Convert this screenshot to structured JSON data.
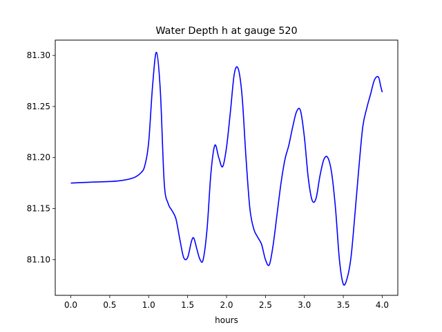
{
  "chart_data": {
    "type": "line",
    "title": "Water Depth h at gauge 520",
    "xlabel": "hours",
    "ylabel": "",
    "xlim": [
      -0.2,
      4.2
    ],
    "ylim": [
      81.065,
      81.315
    ],
    "xticks": [
      "0.0",
      "0.5",
      "1.0",
      "1.5",
      "2.0",
      "2.5",
      "3.0",
      "3.5",
      "4.0"
    ],
    "yticks": [
      "81.10",
      "81.15",
      "81.20",
      "81.25",
      "81.30"
    ],
    "grid": false,
    "series": [
      {
        "color": "#0000ff",
        "x": [
          0.0,
          0.3,
          0.6,
          0.8,
          0.9,
          0.95,
          1.0,
          1.05,
          1.1,
          1.15,
          1.2,
          1.25,
          1.3,
          1.35,
          1.4,
          1.45,
          1.5,
          1.55,
          1.58,
          1.62,
          1.66,
          1.7,
          1.75,
          1.8,
          1.85,
          1.9,
          1.95,
          2.0,
          2.05,
          2.1,
          2.15,
          2.2,
          2.25,
          2.3,
          2.35,
          2.4,
          2.45,
          2.5,
          2.55,
          2.6,
          2.65,
          2.7,
          2.75,
          2.8,
          2.85,
          2.9,
          2.95,
          3.0,
          3.05,
          3.1,
          3.15,
          3.2,
          3.25,
          3.3,
          3.35,
          3.4,
          3.45,
          3.5,
          3.55,
          3.6,
          3.65,
          3.7,
          3.75,
          3.8,
          3.85,
          3.9,
          3.95,
          3.98,
          4.0
        ],
        "y": [
          81.175,
          81.176,
          81.177,
          81.18,
          81.185,
          81.192,
          81.215,
          81.27,
          81.303,
          81.265,
          81.175,
          81.155,
          81.148,
          81.14,
          81.12,
          81.102,
          81.102,
          81.118,
          81.121,
          81.11,
          81.1,
          81.1,
          81.13,
          81.185,
          81.212,
          81.2,
          81.191,
          81.21,
          81.245,
          81.282,
          81.287,
          81.26,
          81.2,
          81.15,
          81.13,
          81.122,
          81.115,
          81.1,
          81.095,
          81.115,
          81.145,
          81.175,
          81.198,
          81.212,
          81.23,
          81.245,
          81.246,
          81.22,
          81.18,
          81.158,
          81.16,
          81.182,
          81.198,
          81.2,
          81.185,
          81.15,
          81.1,
          81.076,
          81.082,
          81.103,
          81.145,
          81.19,
          81.23,
          81.248,
          81.262,
          81.276,
          81.279,
          81.27,
          81.264
        ]
      }
    ]
  }
}
